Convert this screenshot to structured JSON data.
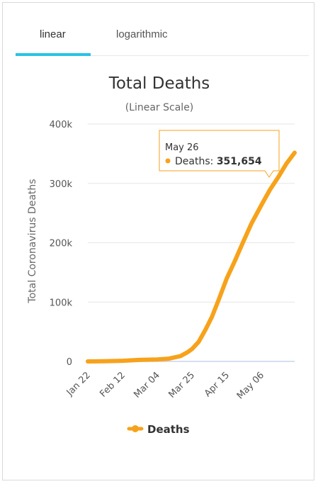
{
  "tabs": [
    {
      "label": "linear",
      "active": true
    },
    {
      "label": "logarithmic",
      "active": false
    }
  ],
  "tooltip": {
    "date": "May 26",
    "series_label": "Deaths:",
    "value_text": "351,654"
  },
  "colors": {
    "series": "#f7a21b",
    "tab_active": "#27c3e6",
    "baseline": "#c8d4ee",
    "grid": "#e6e6e6"
  },
  "chart_data": {
    "type": "line",
    "title": "Total Deaths",
    "subtitle": "(Linear Scale)",
    "ylabel": "Total Coronavirus Deaths",
    "xlabel": "",
    "x_range": [
      "2020-01-22",
      "2020-05-26"
    ],
    "ylim": [
      0,
      400000
    ],
    "yticks": [
      0,
      100000,
      200000,
      300000,
      400000
    ],
    "ytick_labels": [
      "0",
      "100k",
      "200k",
      "300k",
      "400k"
    ],
    "xticks": [
      "2020-01-22",
      "2020-02-12",
      "2020-03-04",
      "2020-03-25",
      "2020-04-15",
      "2020-05-06"
    ],
    "xtick_labels": [
      "Jan 22",
      "Feb 12",
      "Mar 04",
      "Mar 25",
      "Apr 15",
      "May 06"
    ],
    "grid": true,
    "legend_position": "bottom",
    "series": [
      {
        "name": "Deaths",
        "x": [
          "2020-01-22",
          "2020-02-01",
          "2020-02-12",
          "2020-02-22",
          "2020-03-04",
          "2020-03-11",
          "2020-03-18",
          "2020-03-22",
          "2020-03-25",
          "2020-03-29",
          "2020-04-02",
          "2020-04-06",
          "2020-04-10",
          "2020-04-15",
          "2020-04-20",
          "2020-04-25",
          "2020-04-30",
          "2020-05-06",
          "2020-05-11",
          "2020-05-16",
          "2020-05-21",
          "2020-05-26"
        ],
        "y": [
          17,
          259,
          1115,
          2462,
          3286,
          4600,
          9000,
          15000,
          21000,
          33000,
          53000,
          75000,
          103000,
          140000,
          170000,
          202000,
          233000,
          264000,
          289000,
          310000,
          333000,
          351654
        ]
      }
    ]
  }
}
